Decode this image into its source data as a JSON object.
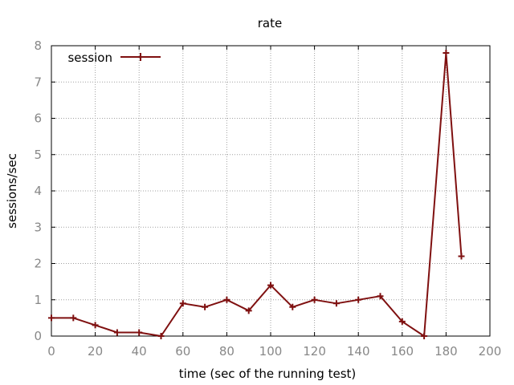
{
  "chart_data": {
    "type": "line",
    "title": "rate",
    "xlabel": "time (sec of the running test)",
    "ylabel": "sessions/sec",
    "xlim": [
      0,
      200
    ],
    "ylim": [
      0,
      8
    ],
    "xticks": [
      "0",
      "20",
      "40",
      "60",
      "80",
      "100",
      "120",
      "140",
      "160",
      "180",
      "200"
    ],
    "yticks": [
      "0",
      "1",
      "2",
      "3",
      "4",
      "5",
      "6",
      "7",
      "8"
    ],
    "grid": true,
    "legend_position": "top-left",
    "series": [
      {
        "name": "session",
        "color": "#7f1010",
        "marker": "plus",
        "x": [
          0,
          10,
          20,
          30,
          40,
          50,
          60,
          70,
          80,
          90,
          100,
          110,
          120,
          130,
          140,
          150,
          160,
          170,
          180,
          187
        ],
        "y": [
          0.5,
          0.5,
          0.3,
          0.1,
          0.1,
          0.0,
          0.9,
          0.8,
          1.0,
          0.7,
          1.4,
          0.8,
          1.0,
          0.9,
          1.0,
          1.1,
          0.4,
          0.0,
          7.8,
          2.2
        ]
      }
    ]
  }
}
